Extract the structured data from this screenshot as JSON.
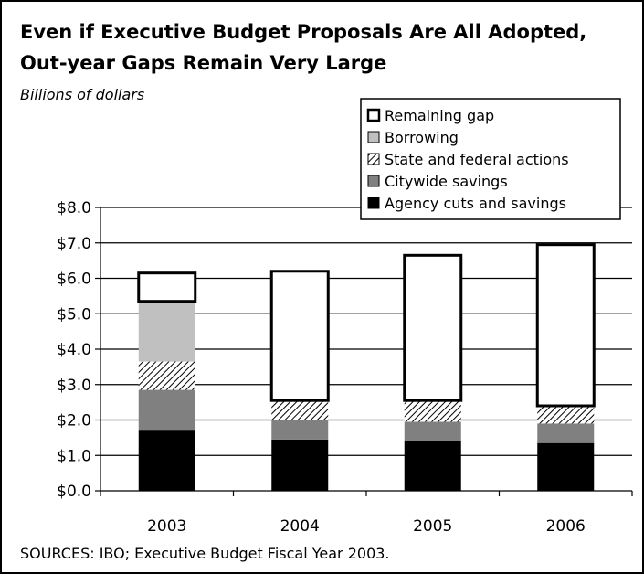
{
  "chart_data": {
    "type": "bar",
    "stacked": true,
    "title": "Even if Executive Budget Proposals Are All Adopted, Out-year Gaps Remain Very Large",
    "title_lines": [
      "Even if Executive Budget Proposals Are All Adopted,",
      "Out-year Gaps Remain Very Large"
    ],
    "subtitle": "Billions of dollars",
    "source": "SOURCES: IBO; Executive Budget Fiscal Year 2003.",
    "categories": [
      "2003",
      "2004",
      "2005",
      "2006"
    ],
    "ylim": [
      0,
      8
    ],
    "yticks": [
      "$0.0",
      "$1.0",
      "$2.0",
      "$3.0",
      "$4.0",
      "$5.0",
      "$6.0",
      "$7.0",
      "$8.0"
    ],
    "grid": true,
    "legend_position": "top-right",
    "series": [
      {
        "name": "Agency cuts and savings",
        "color": "#000000",
        "pattern": "solid",
        "values": [
          1.7,
          1.45,
          1.4,
          1.35
        ]
      },
      {
        "name": "Citywide savings",
        "color": "#808080",
        "pattern": "solid",
        "values": [
          1.15,
          0.55,
          0.55,
          0.55
        ]
      },
      {
        "name": "State and federal actions",
        "color": "#ffffff",
        "pattern": "hatch",
        "values": [
          0.8,
          0.55,
          0.6,
          0.5
        ]
      },
      {
        "name": "Borrowing",
        "color": "#c0c0c0",
        "pattern": "solid",
        "values": [
          1.7,
          0,
          0,
          0
        ]
      },
      {
        "name": "Remaining gap",
        "color": "#ffffff",
        "pattern": "outline",
        "values": [
          0.8,
          3.65,
          4.1,
          4.55
        ]
      }
    ],
    "legend_order": [
      "Remaining gap",
      "Borrowing",
      "State and federal actions",
      "Citywide savings",
      "Agency cuts and savings"
    ]
  }
}
